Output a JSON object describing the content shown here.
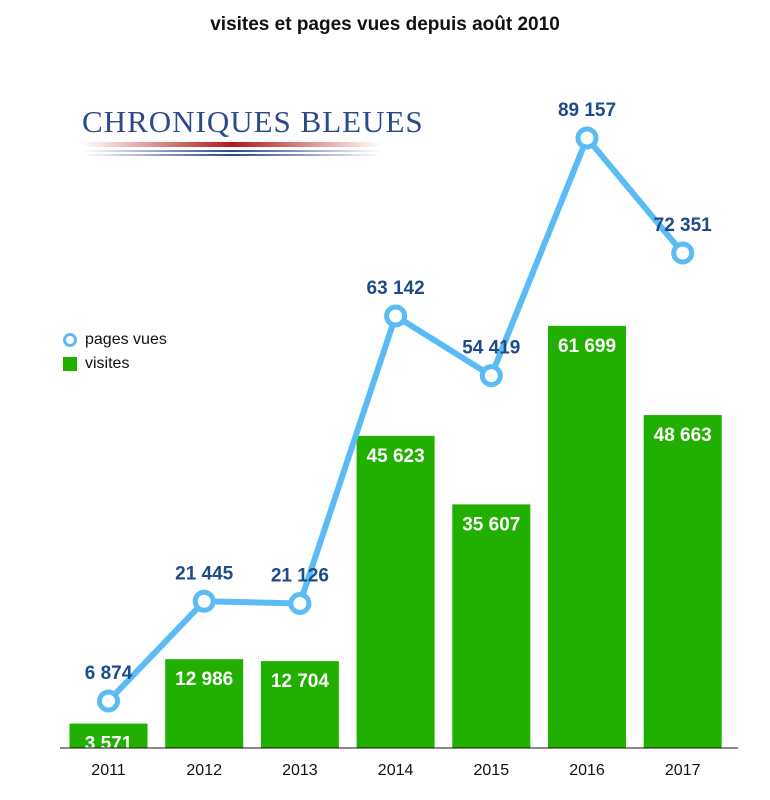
{
  "chart_data": {
    "type": "bar",
    "title": "visites et pages vues depuis août 2010",
    "categories": [
      "2011",
      "2012",
      "2013",
      "2014",
      "2015",
      "2016",
      "2017"
    ],
    "series": [
      {
        "name": "visites",
        "type": "bar",
        "color": "#22b000",
        "values": [
          3571,
          12986,
          12704,
          45623,
          35607,
          61699,
          48663
        ],
        "labels": [
          "3 571",
          "12 986",
          "12 704",
          "45 623",
          "35 607",
          "61 699",
          "48 663"
        ]
      },
      {
        "name": "pages vues",
        "type": "line",
        "color": "#5bbcf5",
        "values": [
          6874,
          21445,
          21126,
          63142,
          54419,
          89157,
          72351
        ],
        "labels": [
          "6 874",
          "21 445",
          "21 126",
          "63 142",
          "54 419",
          "89 157",
          "72 351"
        ]
      }
    ],
    "ylim": [
      0,
      89157
    ],
    "grid": false,
    "legend_position": "left"
  },
  "logo": {
    "text": "CHRONIQUES BLEUES"
  },
  "colors": {
    "bar": "#22b000",
    "line": "#5bbcf5",
    "line_label": "#1e4b8a",
    "bar_label": "#ffffff"
  }
}
